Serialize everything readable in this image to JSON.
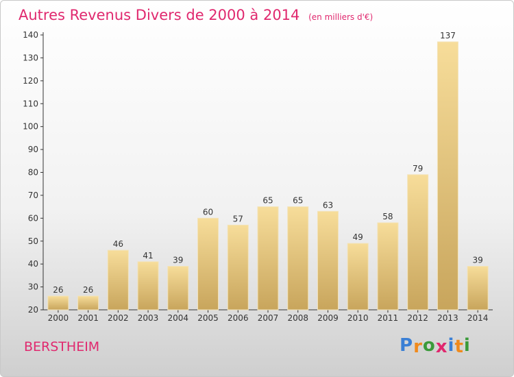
{
  "title": "Autres Revenus Divers de 2000 à 2014",
  "title_unit": "(en milliers d'€)",
  "commune": "BERSTHEIM",
  "logo": {
    "letters": [
      {
        "ch": "P",
        "color": "#3a7fd5"
      },
      {
        "ch": "r",
        "color": "#f08a1c"
      },
      {
        "ch": "o",
        "color": "#3a9a3a"
      },
      {
        "ch": "x",
        "color": "#e0286e"
      },
      {
        "ch": "i",
        "color": "#3a7fd5"
      },
      {
        "ch": "t",
        "color": "#f08a1c"
      },
      {
        "ch": "i",
        "color": "#3a9a3a"
      }
    ]
  },
  "colors": {
    "title": "#e0286e",
    "bar_top": "#f7dd9a",
    "bar_bottom": "#c8a55c",
    "axis": "#333333",
    "grid": "#dddddd"
  },
  "chart_data": {
    "type": "bar",
    "categories": [
      "2000",
      "2001",
      "2002",
      "2003",
      "2004",
      "2005",
      "2006",
      "2007",
      "2008",
      "2009",
      "2010",
      "2011",
      "2012",
      "2013",
      "2014"
    ],
    "values": [
      26,
      26,
      46,
      41,
      39,
      60,
      57,
      65,
      65,
      63,
      49,
      58,
      79,
      137,
      39
    ],
    "ylim": [
      20,
      140
    ],
    "yticks": [
      20,
      30,
      40,
      50,
      60,
      70,
      80,
      90,
      100,
      110,
      120,
      130,
      140
    ],
    "grid": false
  }
}
